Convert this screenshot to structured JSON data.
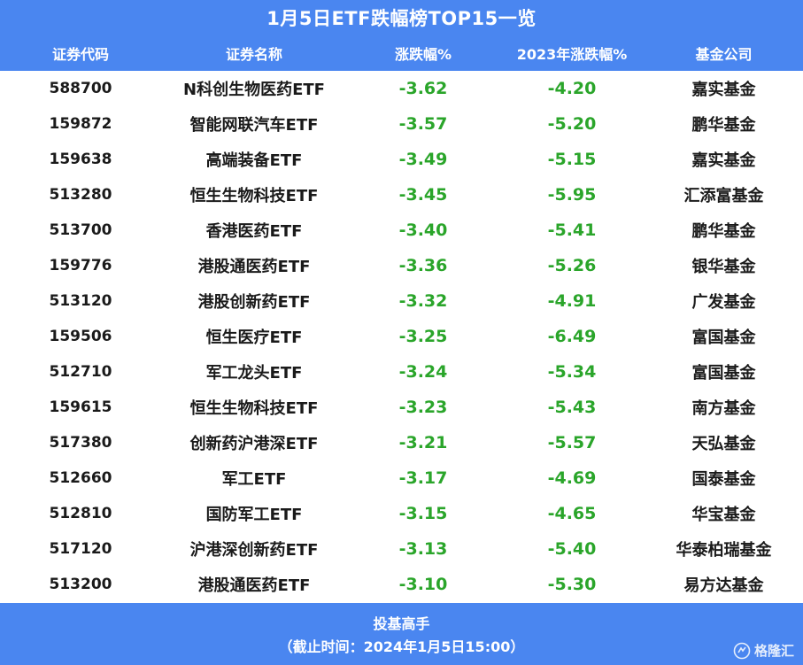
{
  "title": "1月5日ETF跌幅榜TOP15一览",
  "colors": {
    "header_bg": "#4a86f0",
    "negative": "#2aa52a"
  },
  "chart_data": {
    "type": "table",
    "columns": [
      "证券代码",
      "证券名称",
      "涨跌幅%",
      "2023年涨跌幅%",
      "基金公司"
    ],
    "rows": [
      [
        "588700",
        "N科创生物医药ETF",
        "-3.62",
        "-4.20",
        "嘉实基金"
      ],
      [
        "159872",
        "智能网联汽车ETF",
        "-3.57",
        "-5.20",
        "鹏华基金"
      ],
      [
        "159638",
        "高端装备ETF",
        "-3.49",
        "-5.15",
        "嘉实基金"
      ],
      [
        "513280",
        "恒生生物科技ETF",
        "-3.45",
        "-5.95",
        "汇添富基金"
      ],
      [
        "513700",
        "香港医药ETF",
        "-3.40",
        "-5.41",
        "鹏华基金"
      ],
      [
        "159776",
        "港股通医药ETF",
        "-3.36",
        "-5.26",
        "银华基金"
      ],
      [
        "513120",
        "港股创新药ETF",
        "-3.32",
        "-4.91",
        "广发基金"
      ],
      [
        "159506",
        "恒生医疗ETF",
        "-3.25",
        "-6.49",
        "富国基金"
      ],
      [
        "512710",
        "军工龙头ETF",
        "-3.24",
        "-5.34",
        "富国基金"
      ],
      [
        "159615",
        "恒生生物科技ETF",
        "-3.23",
        "-5.43",
        "南方基金"
      ],
      [
        "517380",
        "创新药沪港深ETF",
        "-3.21",
        "-5.57",
        "天弘基金"
      ],
      [
        "512660",
        "军工ETF",
        "-3.17",
        "-4.69",
        "国泰基金"
      ],
      [
        "512810",
        "国防军工ETF",
        "-3.15",
        "-4.65",
        "华宝基金"
      ],
      [
        "517120",
        "沪港深创新药ETF",
        "-3.13",
        "-5.40",
        "华泰柏瑞基金"
      ],
      [
        "513200",
        "港股通医药ETF",
        "-3.10",
        "-5.30",
        "易方达基金"
      ]
    ]
  },
  "footer": {
    "source": "投基高手",
    "time": "（截止时间：2024年1月5日15:00）"
  },
  "logo": {
    "text": "格隆汇",
    "icon": "gelonghui-logo-icon"
  }
}
